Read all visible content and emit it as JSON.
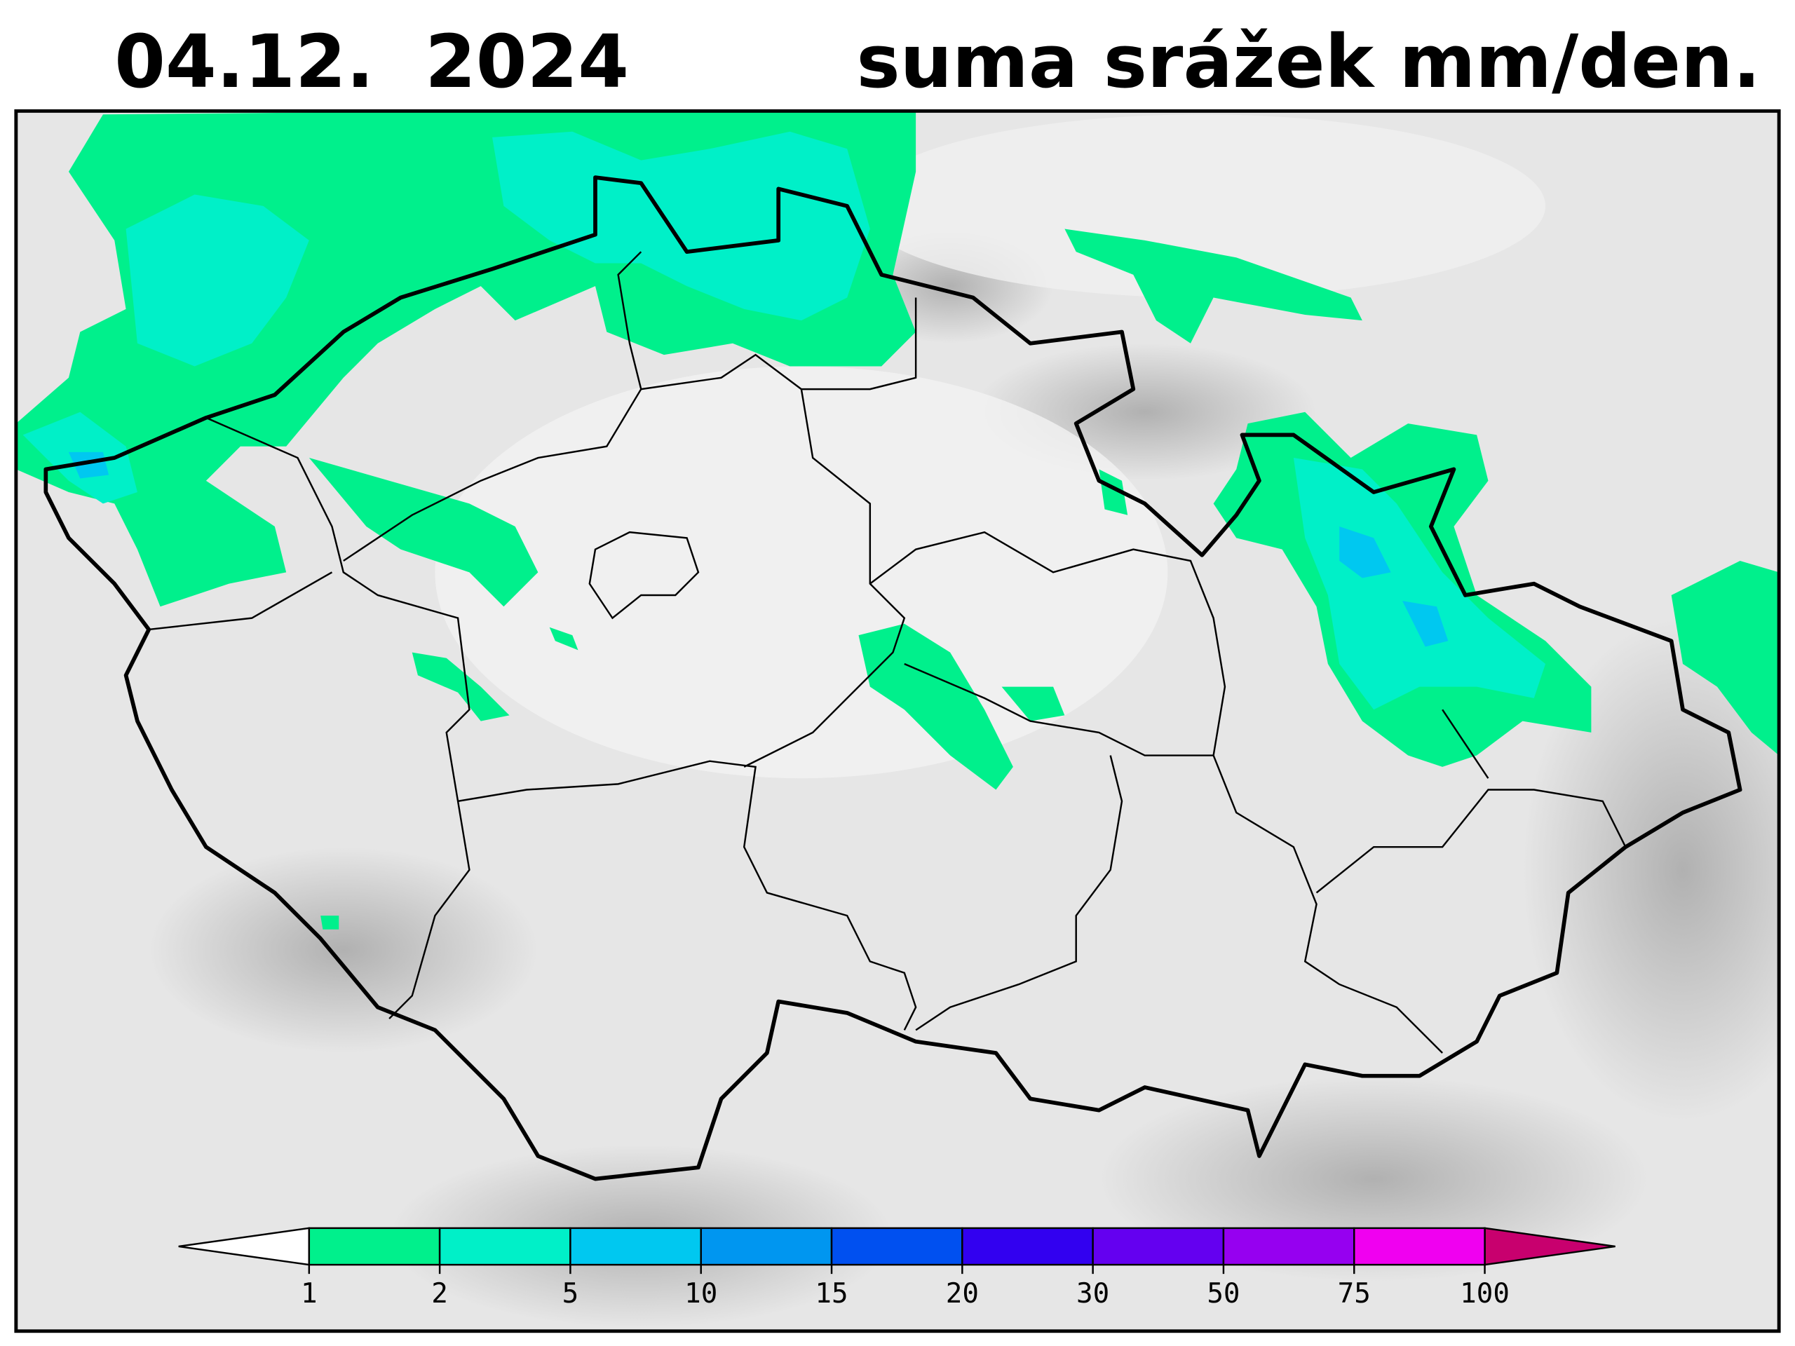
{
  "title_date": "04.12.  2024",
  "title_label": "suma srážek mm/den.",
  "colorbar": {
    "ticks": [
      1,
      2,
      5,
      10,
      15,
      20,
      30,
      50,
      75,
      100
    ],
    "colors": [
      "#00f08c",
      "#00f0c8",
      "#00c8f0",
      "#0096f0",
      "#0050f0",
      "#3200f0",
      "#6400f0",
      "#9600f0",
      "#f000f0"
    ],
    "below_color": "#ffffff",
    "above_color": "#c8006e"
  }
}
